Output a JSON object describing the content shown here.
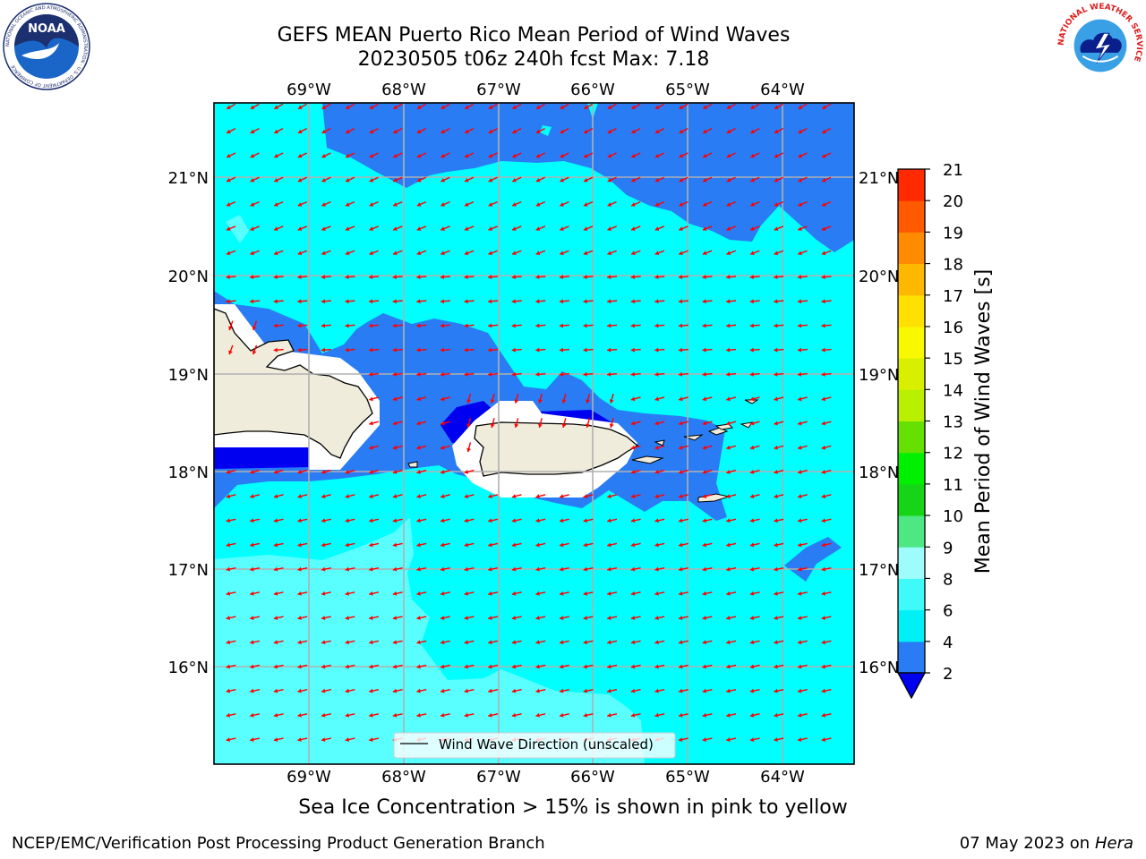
{
  "title": {
    "line1": "GEFS MEAN Puerto Rico Mean Period of Wind Waves",
    "line2": "20230505 t06z 240h fcst   Max: 7.18"
  },
  "longitude_labels": [
    "69°W",
    "68°W",
    "67°W",
    "66°W",
    "65°W",
    "64°W"
  ],
  "latitude_labels": [
    "21°N",
    "20°N",
    "19°N",
    "18°N",
    "17°N",
    "16°N"
  ],
  "legend": {
    "label": "Wind Wave Direction (unscaled)"
  },
  "colorbar": {
    "label": "Mean Period of Wind Waves [s]",
    "ticks": [
      "2",
      "4",
      "6",
      "8",
      "9",
      "10",
      "11",
      "12",
      "13",
      "14",
      "15",
      "16",
      "17",
      "18",
      "19",
      "20",
      "21"
    ],
    "colors": [
      "#2a7cf5",
      "#00f0f5",
      "#40fafa",
      "#9ffcfc",
      "#4de882",
      "#16d416",
      "#00f000",
      "#66e000",
      "#b8f000",
      "#d8f000",
      "#f8f800",
      "#ffe000",
      "#ffb800",
      "#ff8c00",
      "#ff5a00",
      "#ff2a00",
      "#ff0000"
    ],
    "under_color": "#0000f0"
  },
  "map_colors": {
    "ocean_cyan": "#00ffff",
    "ocean_light": "#59ffff",
    "ocean_blue": "#2a7cf5",
    "ocean_dark": "#0000f0",
    "land": "#efecdc",
    "arrow": "#ff0000"
  },
  "footer": {
    "note": "Sea Ice Concentration > 15% is shown in pink to yellow",
    "credit": "NCEP/EMC/Verification Post Processing Product Generation Branch",
    "date": "07 May 2023 on",
    "machine": "Hera"
  },
  "logos": {
    "noaa_text": "NOAA",
    "noaa_ring": "NATIONAL OCEANIC AND ATMOSPHERIC ADMINISTRATION · U.S. DEPARTMENT OF COMMERCE",
    "nws_ring": "NATIONAL WEATHER SERVICE"
  }
}
